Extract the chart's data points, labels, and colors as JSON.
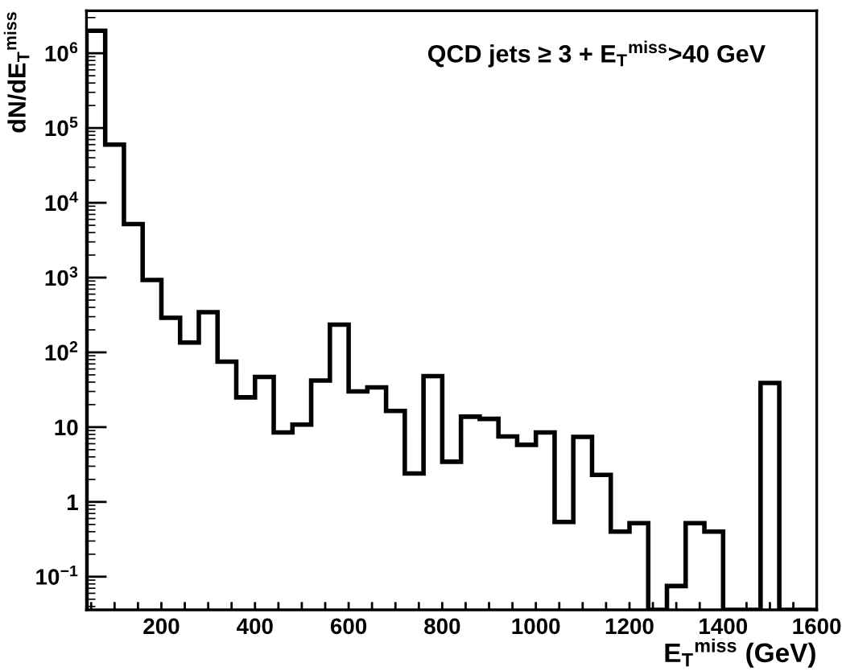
{
  "chart_data": {
    "type": "histogram",
    "title": "QCD jets ≥ 3 + E$_{T}$$^{miss}$>40 GeV",
    "xlabel": "E$_{T}$$^{miss}$ (GeV)",
    "ylabel": "dN/dE$_{T}$$^{miss}$",
    "bins": [
      40,
      80,
      120,
      160,
      200,
      240,
      280,
      320,
      360,
      400,
      440,
      480,
      520,
      560,
      600,
      640,
      680,
      720,
      760,
      800,
      840,
      880,
      920,
      960,
      1000,
      1040,
      1080,
      1120,
      1160,
      1200,
      1240,
      1280,
      1320,
      1360,
      1400,
      1440,
      1480,
      1520,
      1560,
      1600
    ],
    "values": [
      2000000,
      60000,
      5200,
      930,
      290,
      135,
      345,
      75,
      25,
      47,
      8.5,
      10.8,
      42,
      235,
      30,
      34,
      16.5,
      2.4,
      48,
      3.45,
      13.8,
      12.9,
      7.5,
      5.8,
      8.5,
      0.54,
      7.4,
      2.3,
      0.4,
      0.52,
      null,
      0.075,
      0.52,
      0.4,
      null,
      null,
      39,
      null,
      null
    ],
    "color": "#000000",
    "log": "y",
    "xlim": [
      40,
      1600
    ],
    "ylim": [
      0.036,
      3700000
    ],
    "xticks": [
      {
        "value": 50,
        "label": null
      },
      {
        "value": 100,
        "label": null
      },
      {
        "value": 150,
        "label": null
      },
      200,
      {
        "value": 250,
        "label": null
      },
      {
        "value": 300,
        "label": null
      },
      {
        "value": 350,
        "label": null
      },
      400,
      {
        "value": 450,
        "label": null
      },
      {
        "value": 500,
        "label": null
      },
      {
        "value": 550,
        "label": null
      },
      600,
      {
        "value": 650,
        "label": null
      },
      {
        "value": 700,
        "label": null
      },
      {
        "value": 750,
        "label": null
      },
      800,
      {
        "value": 850,
        "label": null
      },
      {
        "value": 900,
        "label": null
      },
      {
        "value": 950,
        "label": null
      },
      1000,
      {
        "value": 1050,
        "label": null
      },
      {
        "value": 1100,
        "label": null
      },
      {
        "value": 1150,
        "label": null
      },
      1200,
      {
        "value": 1250,
        "label": null
      },
      {
        "value": 1300,
        "label": null
      },
      {
        "value": 1350,
        "label": null
      },
      1400,
      {
        "value": 1450,
        "label": null
      },
      {
        "value": 1500,
        "label": null
      },
      {
        "value": 1550,
        "label": null
      },
      1600
    ],
    "yticks": [
      {
        "value": 0.1,
        "label": "10$^{−1}$"
      },
      1,
      10,
      {
        "value": 100,
        "label": "10$^{2}$"
      },
      {
        "value": 1000,
        "label": "10$^{3}$"
      },
      {
        "value": 10000,
        "label": "10$^{4}$"
      },
      {
        "value": 100000,
        "label": "10$^{5}$"
      },
      {
        "value": 1000000,
        "label": "10$^{6}$"
      }
    ],
    "grid": false
  }
}
